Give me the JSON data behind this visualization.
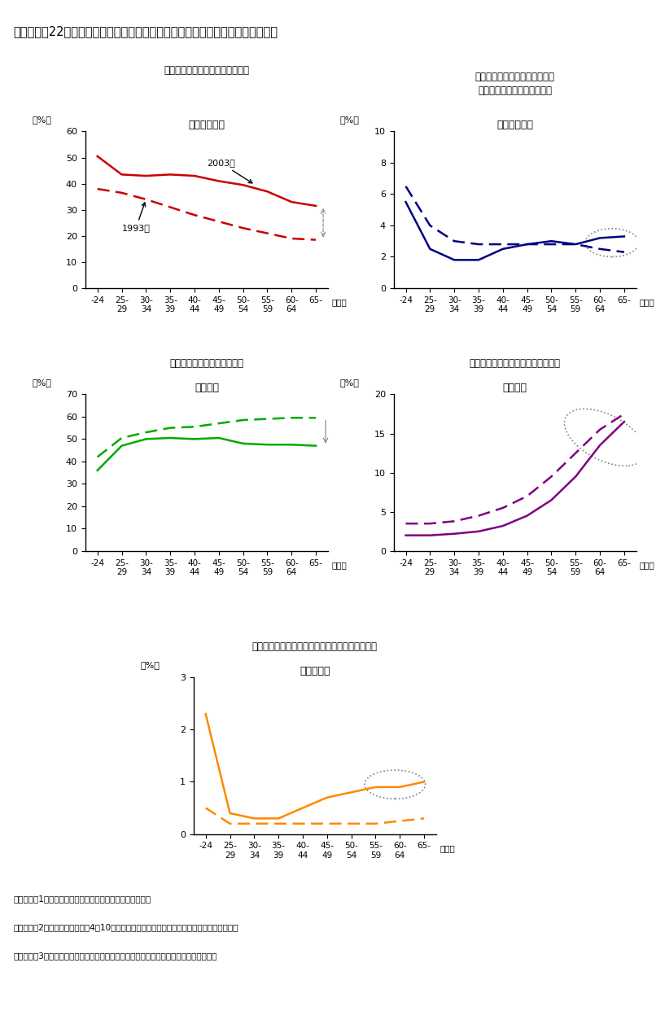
{
  "title": "第３－２－22図　過去５年以内に建築・入居した持家の取得形態別、年齢別推移",
  "panel1": {
    "subtitle": "新築物件の購入割合は顕著に増加",
    "chart_title": "新築物件購入",
    "ylabel": "（%）",
    "ylim": [
      0,
      60
    ],
    "yticks": [
      0,
      10,
      20,
      30,
      40,
      50,
      60
    ],
    "color": "#cc0000",
    "data_2003": [
      50.5,
      43.5,
      43.0,
      43.5,
      43.0,
      41.0,
      39.5,
      37.0,
      33.0,
      31.5
    ],
    "data_1993": [
      38.0,
      36.5,
      34.0,
      31.0,
      28.0,
      25.5,
      23.0,
      21.0,
      19.0,
      18.5
    ],
    "annotation_2003": "2003年",
    "annotation_1993": "1993年"
  },
  "panel2": {
    "subtitle": "ウェイトは小さいが中古物件の\n購入割合は、高年齢層で増加",
    "chart_title": "中古物件購入",
    "ylabel": "（%）",
    "ylim": [
      0,
      10
    ],
    "yticks": [
      0,
      2,
      4,
      6,
      8,
      10
    ],
    "color": "#000080",
    "data_2003": [
      5.5,
      2.5,
      1.8,
      1.8,
      2.5,
      2.8,
      3.0,
      2.8,
      3.2,
      3.3
    ],
    "data_1993": [
      6.5,
      4.0,
      3.0,
      2.8,
      2.8,
      2.8,
      2.8,
      2.8,
      2.5,
      2.3
    ]
  },
  "panel3": {
    "subtitle": "注文新築の割合は大きく低下",
    "chart_title": "注文新築",
    "ylabel": "（%）",
    "ylim": [
      0,
      70
    ],
    "yticks": [
      0,
      10,
      20,
      30,
      40,
      50,
      60,
      70
    ],
    "color": "#00aa00",
    "data_2003": [
      36.0,
      47.0,
      50.0,
      50.5,
      50.0,
      50.5,
      48.0,
      47.5,
      47.5,
      47.0
    ],
    "data_1993": [
      42.0,
      50.5,
      53.0,
      55.0,
      55.5,
      57.0,
      58.5,
      59.0,
      59.5,
      59.5
    ]
  },
  "panel4": {
    "subtitle": "建て替えは高年齢層で顕著に高まる",
    "chart_title": "建て替え",
    "ylabel": "（%）",
    "ylim": [
      0,
      20
    ],
    "yticks": [
      0,
      5,
      10,
      15,
      20
    ],
    "color": "#800080",
    "data_2003": [
      2.0,
      2.0,
      2.2,
      2.5,
      3.2,
      4.5,
      6.5,
      9.5,
      13.5,
      16.5
    ],
    "data_1993": [
      3.5,
      3.5,
      3.8,
      4.5,
      5.5,
      7.0,
      9.5,
      12.5,
      15.5,
      17.5
    ]
  },
  "panel5": {
    "subtitle": "ウェイトは小さいが相続・贈与は高年齢層で増加",
    "chart_title": "相続・贈与",
    "ylabel": "（%）",
    "ylim": [
      0,
      3
    ],
    "yticks": [
      0,
      1,
      2,
      3
    ],
    "color": "#ff8800",
    "data_2003": [
      2.3,
      0.4,
      0.3,
      0.3,
      0.5,
      0.7,
      0.8,
      0.9,
      0.9,
      1.0
    ],
    "data_1993": [
      0.5,
      0.2,
      0.2,
      0.2,
      0.2,
      0.2,
      0.2,
      0.2,
      0.25,
      0.3
    ]
  },
  "footnotes": [
    "（備考）　1．総務省「住宅・土地統計調査」により作成。",
    "　　　　　2．調査時点から過去4年10ヶ月以内に建築・入居した持家の形態別、年齢別割合。",
    "　　　　　3．注文新築：建て替えを除く新築、相続・贈与：相続・贈与後の増改築等。"
  ]
}
